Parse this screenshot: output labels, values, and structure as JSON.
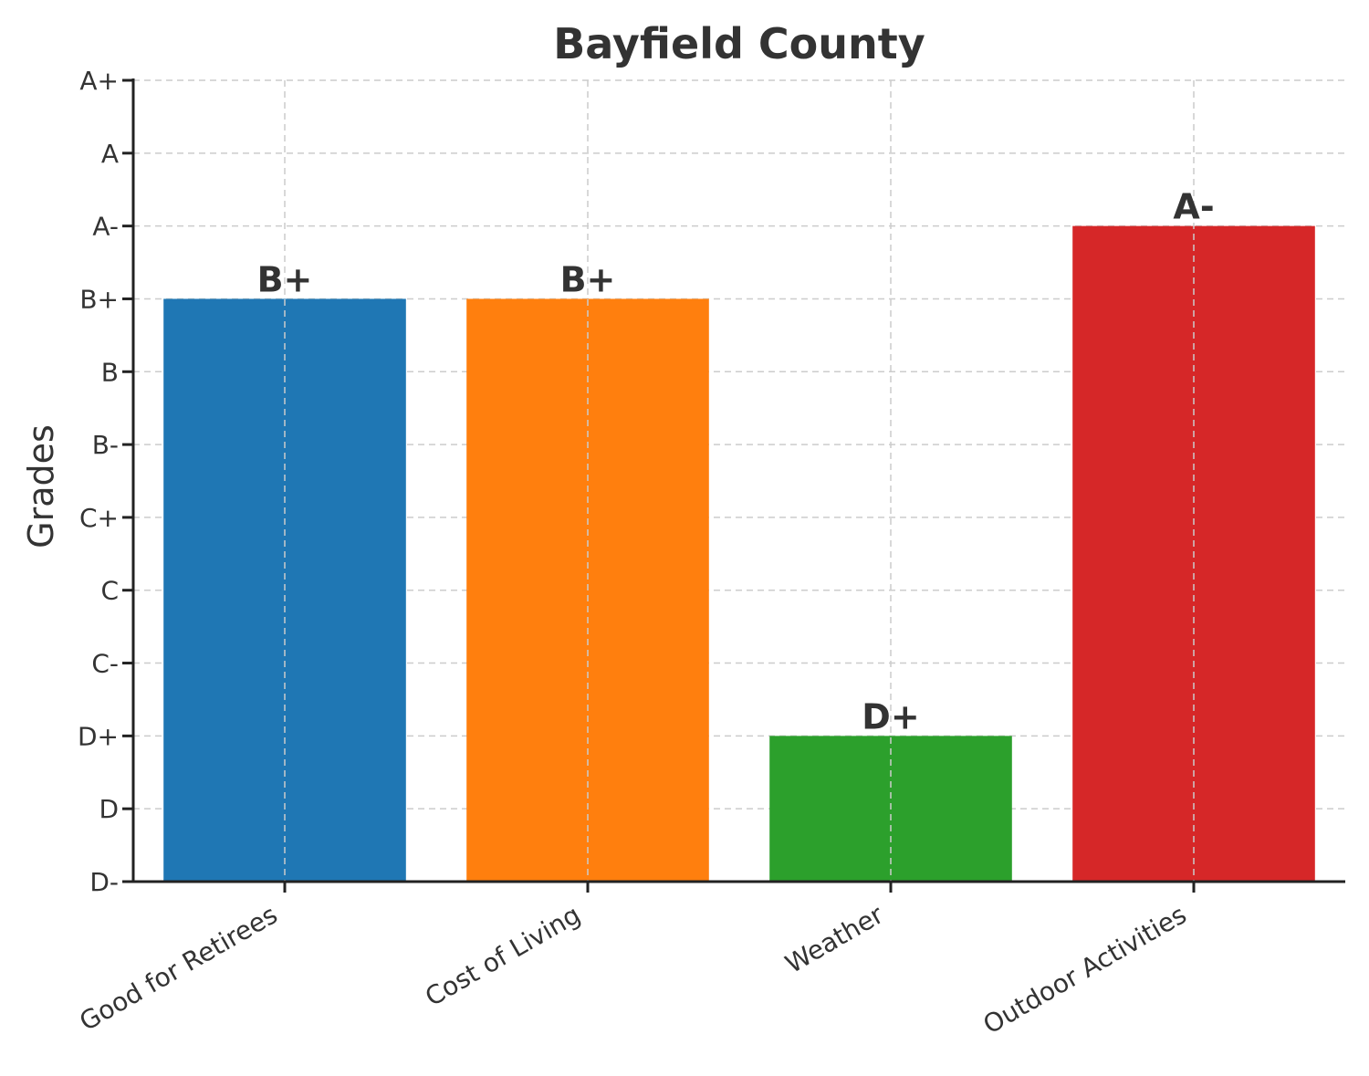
{
  "chart_data": {
    "type": "bar",
    "title": "Bayfield County",
    "xlabel": "",
    "ylabel": "Grades",
    "grade_scale": [
      "D-",
      "D",
      "D+",
      "C-",
      "C",
      "C+",
      "B-",
      "B",
      "B+",
      "A-",
      "A",
      "A+"
    ],
    "categories": [
      "Good for Retirees",
      "Cost of Living",
      "Weather",
      "Outdoor Activities"
    ],
    "values": [
      8,
      8,
      2,
      9
    ],
    "value_labels": [
      "B+",
      "B+",
      "D+",
      "A-"
    ],
    "colors": [
      "#1f77b4",
      "#ff7f0e",
      "#2ca02c",
      "#d62728"
    ],
    "ylim": [
      0,
      11
    ],
    "grid": true
  }
}
